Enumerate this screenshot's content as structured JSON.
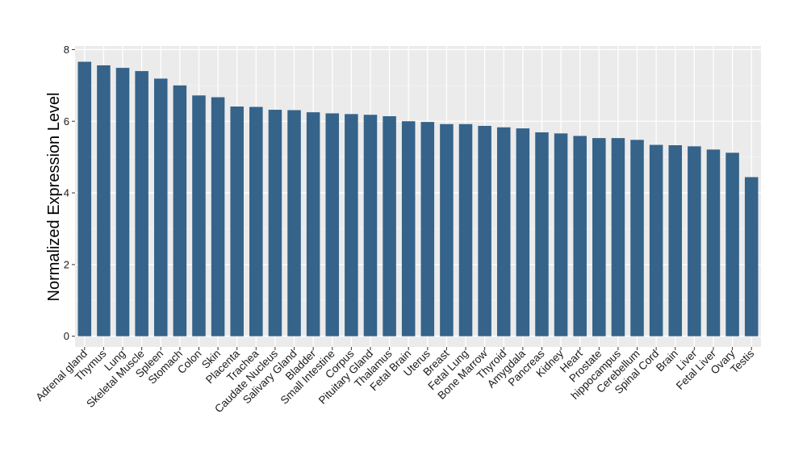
{
  "chart_data": {
    "type": "bar",
    "title": "",
    "xlabel": "",
    "ylabel": "Normalized Expression Level",
    "ylim": [
      -0.3,
      8.1
    ],
    "yticks": [
      0,
      2,
      4,
      6,
      8
    ],
    "grid": true,
    "colors": {
      "bar": "#35638a",
      "panel": "#ebebeb",
      "grid_major": "#ffffff",
      "grid_minor": "#f5f5f5"
    },
    "categories": [
      "Adrenal gland",
      "Thymus",
      "Lung",
      "Skeletal Muscle",
      "Spleen",
      "Stomach",
      "Colon",
      "Skin",
      "Placenta",
      "Trachea",
      "Caudate Nucleus",
      "Salivary Gland",
      "Bladder",
      "Small Intestine",
      "Corpus",
      "Pituitary Gland",
      "Thalamus",
      "Fetal Brain",
      "Uterus",
      "Breast",
      "Fetal Lung",
      "Bone Marrow",
      "Thyroid",
      "Amygdala",
      "Pancreas",
      "Kidney",
      "Heart",
      "Prostate",
      "hippocampus",
      "Cerebellum",
      "Spinal Cord",
      "Brain",
      "Liver",
      "Fetal Liver",
      "Ovary",
      "Testis"
    ],
    "values": [
      7.66,
      7.56,
      7.49,
      7.4,
      7.19,
      7.0,
      6.72,
      6.67,
      6.41,
      6.4,
      6.32,
      6.31,
      6.25,
      6.22,
      6.2,
      6.18,
      6.14,
      6.0,
      5.98,
      5.92,
      5.92,
      5.87,
      5.83,
      5.8,
      5.69,
      5.66,
      5.59,
      5.53,
      5.53,
      5.48,
      5.34,
      5.33,
      5.3,
      5.21,
      5.12,
      4.44
    ]
  }
}
